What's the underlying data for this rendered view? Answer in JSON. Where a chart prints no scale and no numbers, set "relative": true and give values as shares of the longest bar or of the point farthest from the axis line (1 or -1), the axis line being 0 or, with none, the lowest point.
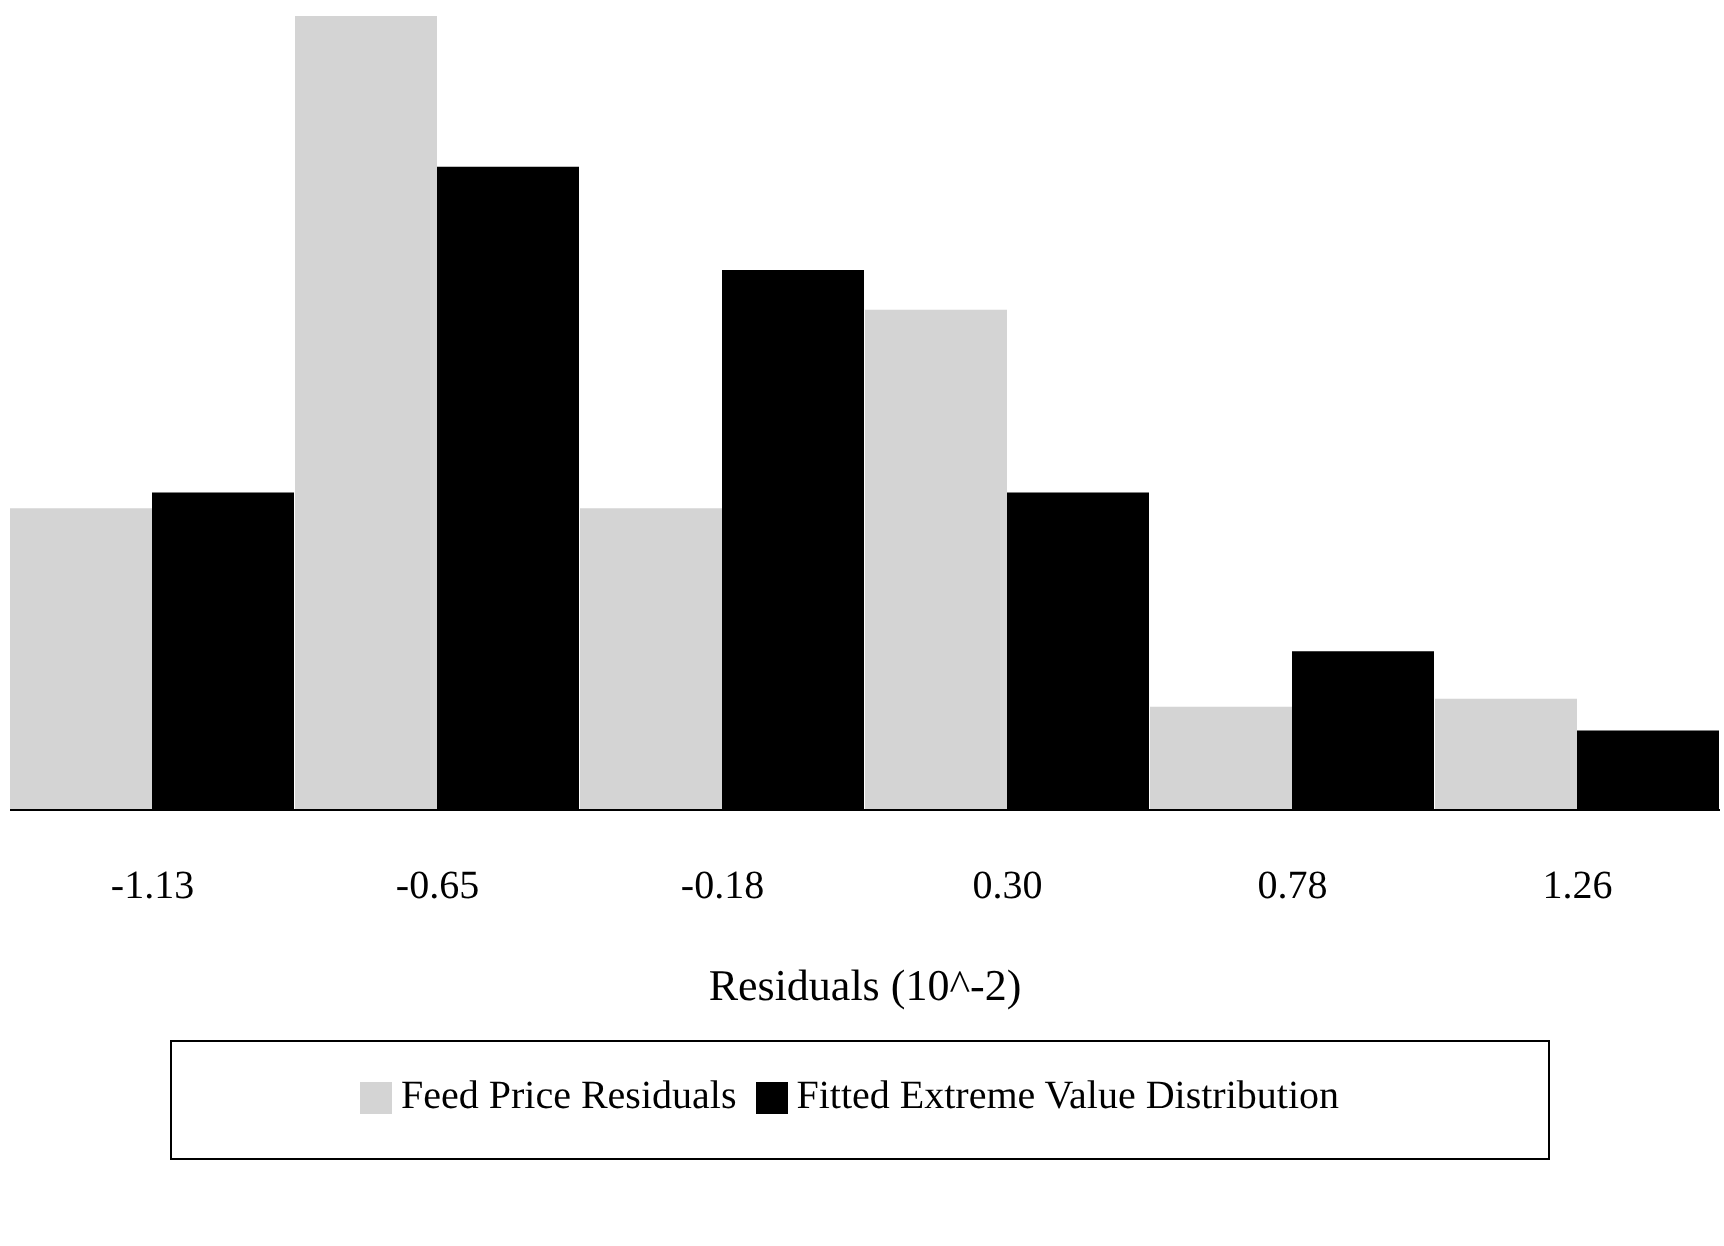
{
  "chart_data": {
    "type": "bar",
    "relative": true,
    "xlabel": "Residuals (10^-2)",
    "categories": [
      "-1.13",
      "-0.65",
      "-0.18",
      "0.30",
      "0.78",
      "1.26"
    ],
    "legend": "bottom",
    "grid": false,
    "series": [
      {
        "name": "Feed Price Residuals",
        "color": "#d4d4d4",
        "values": [
          0.38,
          1,
          0.38,
          0.63,
          0.13,
          0.14
        ]
      },
      {
        "name": "Fitted Extreme Value Distribution",
        "color": "#000000",
        "values": [
          0.4,
          0.81,
          0.68,
          0.4,
          0.2,
          0.1
        ]
      }
    ]
  }
}
